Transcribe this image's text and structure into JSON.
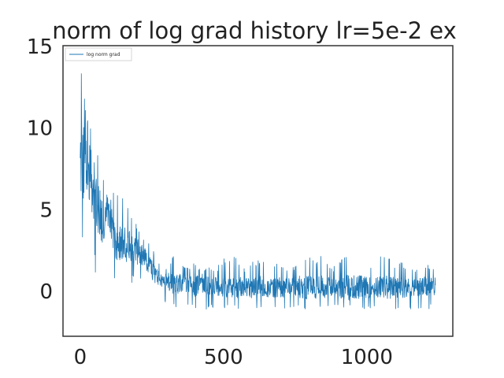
{
  "chart_data": {
    "type": "line",
    "title": "norm of log grad history lr=5e-2 ex",
    "xlabel": "",
    "ylabel": "",
    "xlim": [
      -60,
      1300
    ],
    "ylim": [
      -2.8,
      15
    ],
    "xticks": [
      0,
      500,
      1000
    ],
    "yticks": [
      0,
      5,
      10,
      15
    ],
    "x_tick_labels": [
      "0",
      "500",
      "1000"
    ],
    "y_tick_labels": [
      "0",
      "5",
      "10",
      "15"
    ],
    "grid": false,
    "legend": "top-left",
    "series": [
      {
        "name": "log norm grad",
        "color": "#1f77b4",
        "x_start": 0,
        "x_step": 25,
        "values": [
          8.0,
          7.6,
          6.0,
          4.2,
          5.0,
          3.0,
          3.0,
          2.6,
          2.4,
          2.0,
          1.3,
          0.7,
          0.55,
          0.45,
          0.4,
          0.35,
          0.3,
          0.3,
          0.3,
          0.25,
          0.25,
          0.25,
          0.25,
          0.2,
          0.2,
          0.2,
          0.2,
          0.2,
          0.2,
          0.2,
          0.2,
          0.2,
          0.2,
          0.2,
          0.2,
          0.2,
          0.2,
          0.2,
          0.2,
          0.2,
          0.2,
          0.2,
          0.2,
          0.2,
          0.2,
          0.2,
          0.2,
          0.2,
          0.2,
          0.2
        ],
        "low": [
          1.9,
          2.0,
          1.0,
          1.0,
          0.8,
          0.5,
          0.4,
          0.4,
          0.3,
          0.3,
          -0.2,
          -0.5,
          -0.8,
          -1.0,
          -1.1,
          -1.2,
          -1.2,
          -1.2,
          -1.2,
          -1.2,
          -1.2,
          -1.2,
          -1.2,
          -1.2,
          -1.2,
          -1.2,
          -1.2,
          -1.2,
          -1.2,
          -1.2,
          -1.2,
          -1.2,
          -1.2,
          -1.2,
          -1.2,
          -1.2,
          -1.2,
          -1.2,
          -1.2,
          -1.2,
          -1.2,
          -1.2,
          -1.2,
          -1.2,
          -1.2,
          -1.2,
          -1.2,
          -1.2,
          -1.2,
          -1.2
        ],
        "high": [
          14.2,
          10.6,
          9.1,
          7.4,
          5.3,
          6.4,
          5.7,
          5.1,
          4.0,
          3.3,
          2.7,
          1.7,
          1.5,
          2.1,
          1.6,
          1.4,
          1.9,
          1.2,
          1.5,
          1.4,
          2.0,
          2.2,
          2.1,
          1.3,
          1.8,
          1.9,
          1.8,
          1.6,
          1.9,
          1.2,
          1.7,
          2.4,
          2.2,
          1.9,
          2.4,
          1.3,
          1.8,
          2.5,
          2.1,
          2.3,
          1.7,
          1.4,
          2.2,
          2.1,
          1.6,
          1.8,
          1.3,
          1.5,
          1.7,
          1.5
        ]
      }
    ]
  }
}
